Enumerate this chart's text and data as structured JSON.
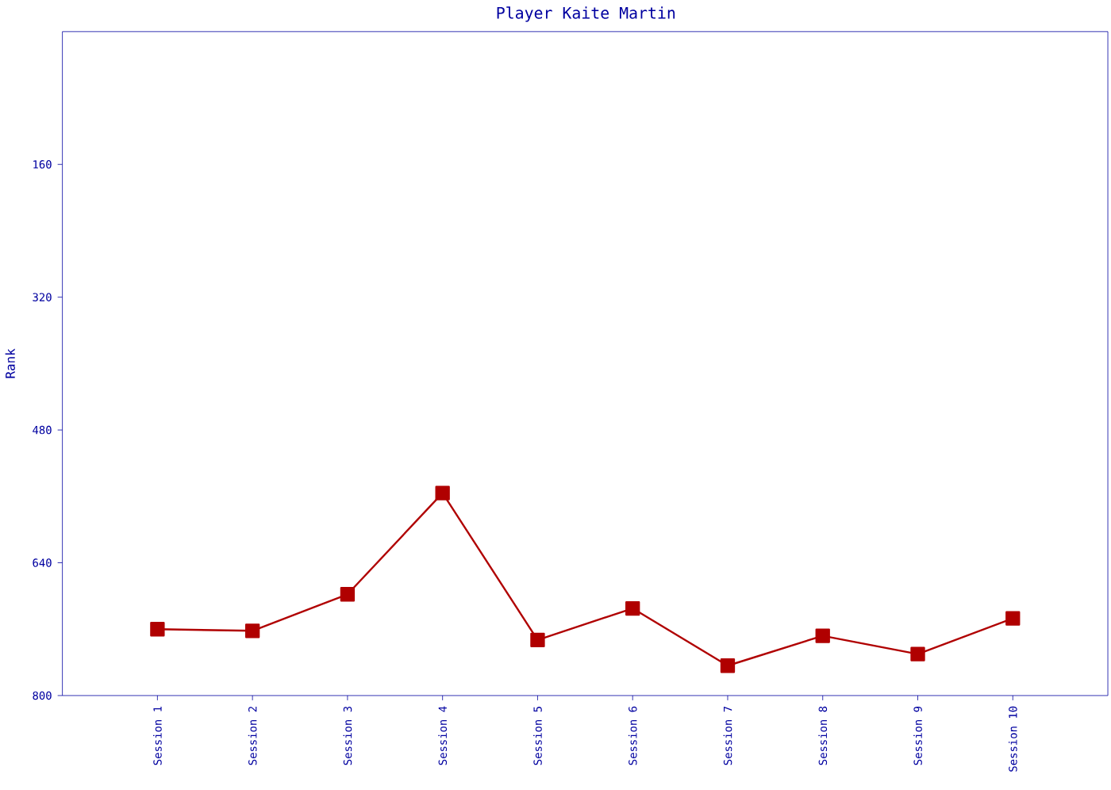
{
  "chart_data": {
    "type": "line",
    "title": "Player Kaite Martin",
    "ylabel": "Rank",
    "categories": [
      "Session 1",
      "Session 2",
      "Session 3",
      "Session 4",
      "Session 5",
      "Session 6",
      "Session 7",
      "Session 8",
      "Session 9",
      "Session 10"
    ],
    "series": [
      {
        "color": "#b00000",
        "values": [
          720,
          722,
          678,
          556,
          733,
          695,
          764,
          728,
          750,
          707
        ]
      }
    ],
    "ylim": [
      800,
      0
    ],
    "yticks": [
      160,
      320,
      480,
      640,
      800
    ],
    "marker": "square",
    "line_style": "solid",
    "grid": false
  }
}
